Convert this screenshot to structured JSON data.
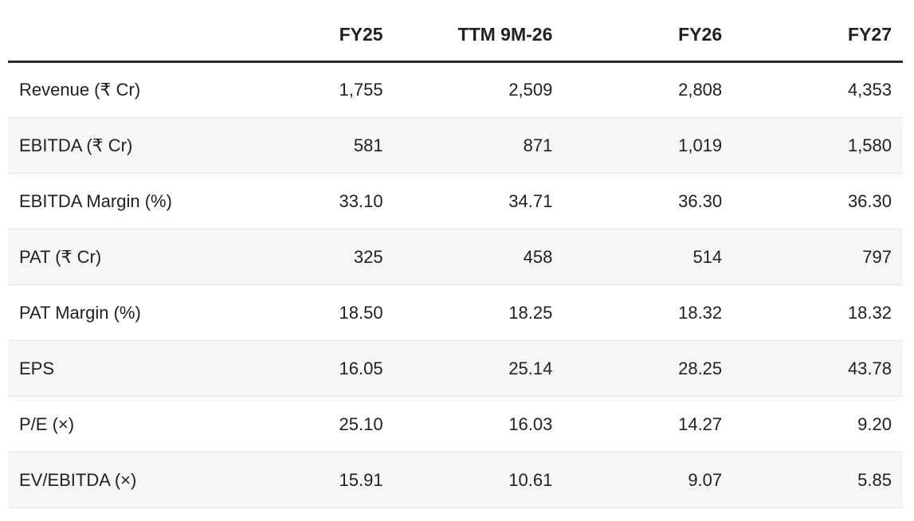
{
  "chart_data": {
    "type": "table",
    "columns": [
      "",
      "FY25",
      "TTM 9M-26",
      "FY26",
      "FY27"
    ],
    "rows": [
      {
        "label": "Revenue (₹ Cr)",
        "values": [
          "1,755",
          "2,509",
          "2,808",
          "4,353"
        ]
      },
      {
        "label": "EBITDA (₹ Cr)",
        "values": [
          "581",
          "871",
          "1,019",
          "1,580"
        ]
      },
      {
        "label": "EBITDA Margin (%)",
        "values": [
          "33.10",
          "34.71",
          "36.30",
          "36.30"
        ]
      },
      {
        "label": "PAT (₹ Cr)",
        "values": [
          "325",
          "458",
          "514",
          "797"
        ]
      },
      {
        "label": "PAT Margin (%)",
        "values": [
          "18.50",
          "18.25",
          "18.32",
          "18.32"
        ]
      },
      {
        "label": "EPS",
        "values": [
          "16.05",
          "25.14",
          "28.25",
          "43.78"
        ]
      },
      {
        "label": "P/E (×)",
        "values": [
          "25.10",
          "16.03",
          "14.27",
          "9.20"
        ]
      },
      {
        "label": "EV/EBITDA (×)",
        "values": [
          "15.91",
          "10.61",
          "9.07",
          "5.85"
        ]
      }
    ],
    "layout": {
      "header_alignment": "right",
      "value_alignment": "right",
      "row_striping": "even rows shaded"
    },
    "colors": {
      "text": "#212121",
      "header_rule": "#2d2d2d",
      "row_alt_background": "#f6f6f6",
      "row_divider": "#e2e2e2",
      "background": "#ffffff"
    }
  }
}
